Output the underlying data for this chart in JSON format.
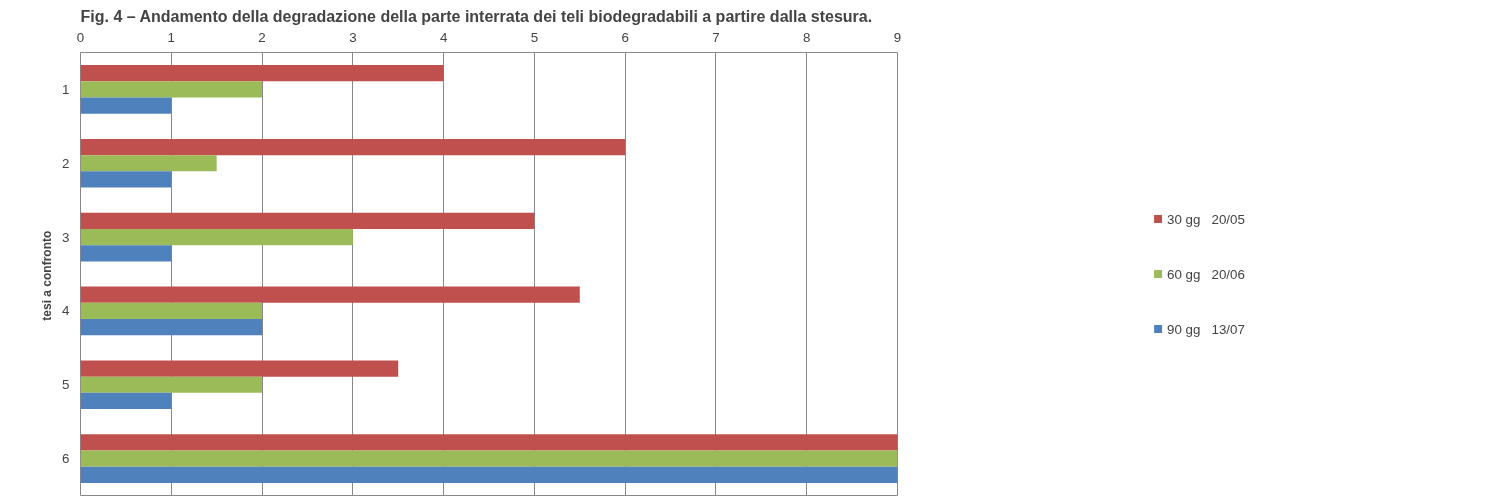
{
  "chart_data": {
    "type": "bar",
    "orientation": "horizontal",
    "title": "Fig. 4 – Andamento della degradazione della parte interrata dei teli biodegradabili a partire  dalla stesura.",
    "ylabel": "tesi  a confronto",
    "categories": [
      "1",
      "2",
      "3",
      "4",
      "5",
      "6"
    ],
    "series": [
      {
        "name": "30 gg   20/05",
        "color": "#c0504d",
        "values": [
          4,
          6,
          5,
          5.5,
          3.5,
          9
        ]
      },
      {
        "name": "60 gg   20/06",
        "color": "#9bbb59",
        "values": [
          2,
          1.5,
          3,
          2,
          2,
          9
        ]
      },
      {
        "name": "90 gg   13/07",
        "color": "#4f81bd",
        "values": [
          1,
          1,
          1,
          2,
          1,
          9
        ]
      }
    ],
    "xlim": [
      0,
      9
    ],
    "xticks": [
      0,
      1,
      2,
      3,
      4,
      5,
      6,
      7,
      8,
      9
    ],
    "grid": "x",
    "legend": "right"
  }
}
